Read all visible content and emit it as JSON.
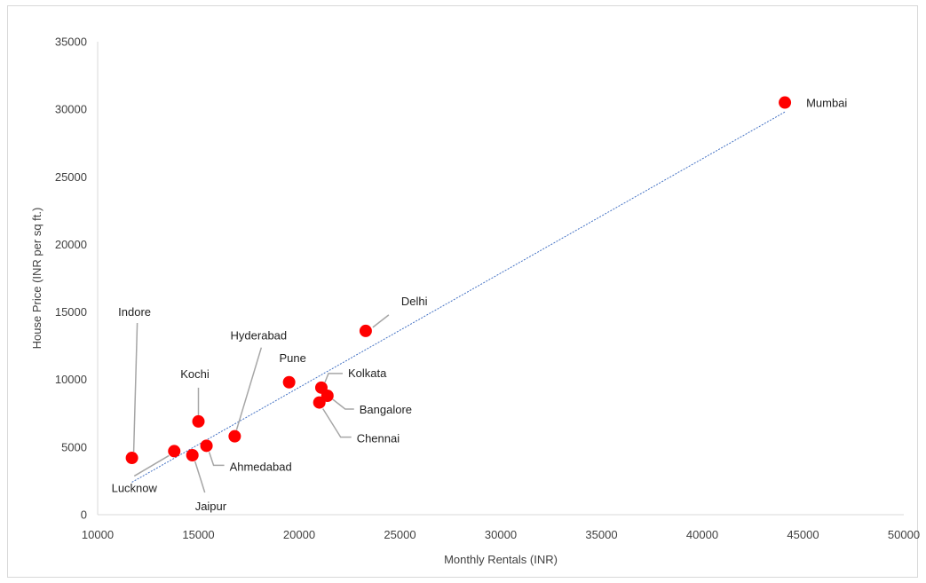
{
  "chart_data": {
    "type": "scatter",
    "xlabel": "Monthly Rentals (INR)",
    "ylabel": "House Price (INR per sq ft.)",
    "xlim": [
      10000,
      50000
    ],
    "ylim": [
      0,
      35000
    ],
    "x_ticks": [
      "10000",
      "15000",
      "20000",
      "25000",
      "30000",
      "35000",
      "40000",
      "45000",
      "50000"
    ],
    "y_ticks": [
      "0",
      "5000",
      "10000",
      "15000",
      "20000",
      "25000",
      "30000",
      "35000"
    ],
    "grid": false,
    "legend": "none",
    "point_color": "#ff0000",
    "trendline_color": "#4472c4",
    "points": [
      {
        "label": "Mumbai",
        "x": 44100,
        "y": 30500
      },
      {
        "label": "Delhi",
        "x": 23300,
        "y": 13600
      },
      {
        "label": "Kolkata",
        "x": 21100,
        "y": 9400
      },
      {
        "label": "Bangalore",
        "x": 21400,
        "y": 8800
      },
      {
        "label": "Chennai",
        "x": 21000,
        "y": 8300
      },
      {
        "label": "Pune",
        "x": 19500,
        "y": 9800
      },
      {
        "label": "Hyderabad",
        "x": 16800,
        "y": 5800
      },
      {
        "label": "Kochi",
        "x": 15000,
        "y": 6900
      },
      {
        "label": "Ahmedabad",
        "x": 15400,
        "y": 5100
      },
      {
        "label": "Jaipur",
        "x": 14700,
        "y": 4400
      },
      {
        "label": "Lucknow",
        "x": 13800,
        "y": 4700
      },
      {
        "label": "Indore",
        "x": 11700,
        "y": 4200
      }
    ],
    "trendline": {
      "type": "linear",
      "x_start": 11700,
      "y_start": 2400,
      "x_end": 44100,
      "y_end": 29800
    }
  }
}
